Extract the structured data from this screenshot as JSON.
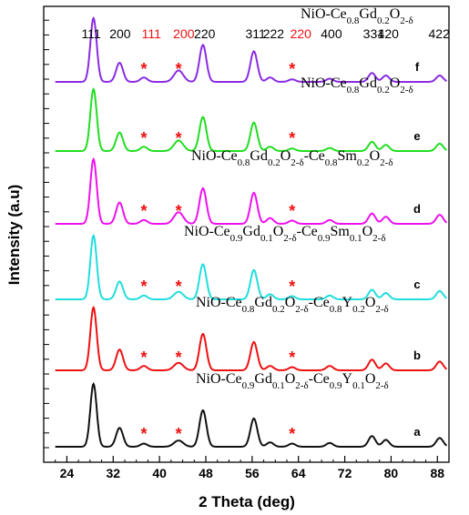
{
  "chart_data": {
    "type": "line",
    "xlabel": "2 Theta (deg)",
    "ylabel": "Intensity (a.u)",
    "xlim": [
      20,
      90
    ],
    "xticks": [
      24,
      32,
      40,
      48,
      56,
      64,
      72,
      80,
      88
    ],
    "grid": false,
    "peaks_2theta": [
      28.6,
      33.1,
      37.3,
      43.3,
      47.5,
      56.3,
      59.1,
      62.9,
      69.4,
      76.7,
      79.1,
      88.4
    ],
    "series": [
      {
        "id": "f",
        "color": "#8a2be2",
        "label": {
          "prefix": "NiO-Ce",
          "s1": "0.8",
          "mid1": "Gd",
          "s2": "0.2",
          "mid2": "O",
          "s3": "2-δ",
          "tail": []
        },
        "intensities": [
          1.0,
          0.3,
          0.07,
          0.18,
          0.58,
          0.48,
          0.07,
          0.04,
          0.05,
          0.14,
          0.1,
          0.1
        ]
      },
      {
        "id": "e",
        "color": "#22dd22",
        "label": {
          "prefix": "NiO-Ce",
          "s1": "0.8",
          "mid1": "Gd",
          "s2": "0.2",
          "mid2": "O",
          "s3": "2-δ",
          "tail": []
        },
        "intensities": [
          1.0,
          0.3,
          0.07,
          0.17,
          0.55,
          0.46,
          0.07,
          0.04,
          0.05,
          0.15,
          0.1,
          0.12
        ]
      },
      {
        "id": "d",
        "color": "#ee11ee",
        "label": {
          "prefix": "NiO-Ce",
          "s1": "0.8",
          "mid1": "Gd",
          "s2": "0.2",
          "mid2": "O",
          "s3": "2-δ",
          "tail": [
            {
              "t": "-Ce",
              "s": "0.8"
            },
            {
              "t": "Sm",
              "s": "0.2"
            },
            {
              "t": "O",
              "s": "2-δ"
            }
          ]
        },
        "intensities": [
          1.0,
          0.33,
          0.06,
          0.18,
          0.55,
          0.48,
          0.09,
          0.05,
          0.06,
          0.16,
          0.11,
          0.14
        ]
      },
      {
        "id": "c",
        "color": "#22dddd",
        "label": {
          "prefix": "NiO-Ce",
          "s1": "0.9",
          "mid1": "Gd",
          "s2": "0.1",
          "mid2": "O",
          "s3": "2-δ",
          "tail": [
            {
              "t": "-Ce",
              "s": "0.9"
            },
            {
              "t": "Sm",
              "s": "0.1"
            },
            {
              "t": "O",
              "s": "2-δ"
            }
          ]
        },
        "intensities": [
          1.0,
          0.28,
          0.06,
          0.12,
          0.55,
          0.46,
          0.08,
          0.05,
          0.06,
          0.15,
          0.1,
          0.13
        ]
      },
      {
        "id": "b",
        "color": "#ee1111",
        "label": {
          "prefix": "NiO-Ce",
          "s1": "0.8",
          "mid1": "Gd",
          "s2": "0.2",
          "mid2": "O",
          "s3": "2-δ",
          "tail": [
            {
              "t": "-Ce",
              "s": "0.8"
            },
            {
              "t": "Y",
              "s": "0.2"
            },
            {
              "t": "O",
              "s": "2-δ"
            }
          ]
        },
        "intensities": [
          1.0,
          0.33,
          0.07,
          0.12,
          0.58,
          0.45,
          0.07,
          0.05,
          0.07,
          0.17,
          0.11,
          0.14
        ]
      },
      {
        "id": "a",
        "color": "#111111",
        "label": {
          "prefix": "NiO-Ce",
          "s1": "0.9",
          "mid1": "Gd",
          "s2": "0.1",
          "mid2": "O",
          "s3": "2-δ",
          "tail": [
            {
              "t": "-Ce",
              "s": "0.9"
            },
            {
              "t": "Y",
              "s": "0.1"
            },
            {
              "t": "O",
              "s": "2-δ"
            }
          ]
        },
        "intensities": [
          1.0,
          0.3,
          0.05,
          0.1,
          0.58,
          0.45,
          0.07,
          0.05,
          0.06,
          0.17,
          0.11,
          0.14
        ]
      }
    ],
    "hkl_labels": [
      {
        "text": "111",
        "x": 28.2,
        "color": "#000000"
      },
      {
        "text": "200",
        "x": 33.2,
        "color": "#000000"
      },
      {
        "text": "111",
        "x": 38.6,
        "color": "#ee1111"
      },
      {
        "text": "200",
        "x": 44.2,
        "color": "#ee1111"
      },
      {
        "text": "220",
        "x": 47.8,
        "color": "#000000"
      },
      {
        "text": "311",
        "x": 56.6,
        "color": "#000000"
      },
      {
        "text": "222",
        "x": 59.7,
        "color": "#000000"
      },
      {
        "text": "220",
        "x": 64.4,
        "color": "#ee1111"
      },
      {
        "text": "400",
        "x": 69.7,
        "color": "#000000"
      },
      {
        "text": "331",
        "x": 77.0,
        "color": "#000000"
      },
      {
        "text": "420",
        "x": 79.5,
        "color": "#000000"
      },
      {
        "text": "422",
        "x": 88.3,
        "color": "#000000"
      }
    ],
    "nio_markers_2theta": [
      37.3,
      43.3,
      62.9
    ]
  }
}
